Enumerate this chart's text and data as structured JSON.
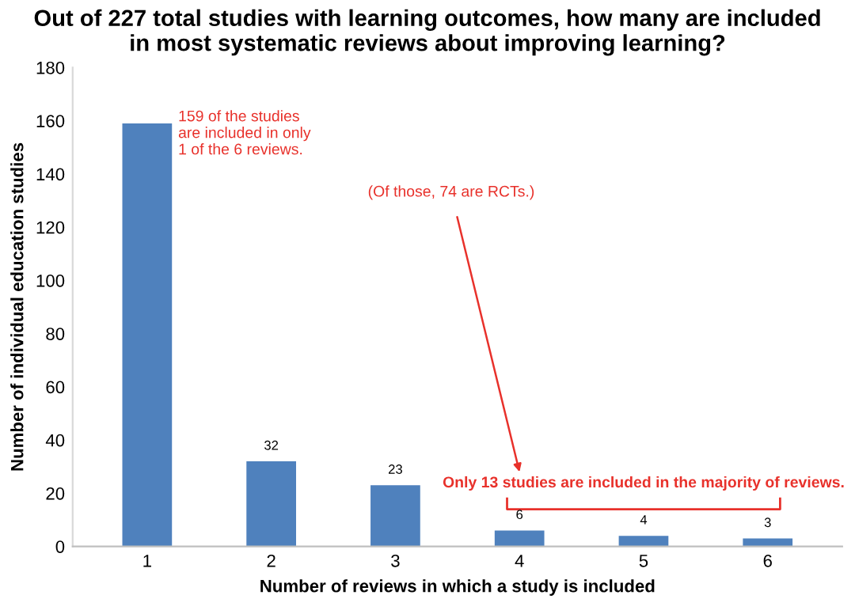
{
  "chart_data": {
    "type": "bar",
    "title": "Out of 227 total studies with learning outcomes, how many are included\nin most systematic reviews about improving learning?",
    "xlabel": "Number of reviews in which a study is included",
    "ylabel": "Number of individual education studies",
    "categories": [
      "1",
      "2",
      "3",
      "4",
      "5",
      "6"
    ],
    "values": [
      159,
      32,
      23,
      6,
      4,
      3
    ],
    "value_labels": [
      null,
      "32",
      "23",
      "6",
      "4",
      "3"
    ],
    "color": "#4f81bd",
    "ylim": [
      0,
      180
    ],
    "yticks": [
      0,
      20,
      40,
      60,
      80,
      100,
      120,
      140,
      160,
      180
    ],
    "grid": false,
    "legend": false,
    "annotations": [
      {
        "text": "159 of the studies\nare included in only\n1 of the 6 reviews.",
        "x": "1",
        "y": 159
      },
      "(Of those, 74 are RCTs.)",
      "Only 13 studies are included in the majority of reviews."
    ]
  }
}
